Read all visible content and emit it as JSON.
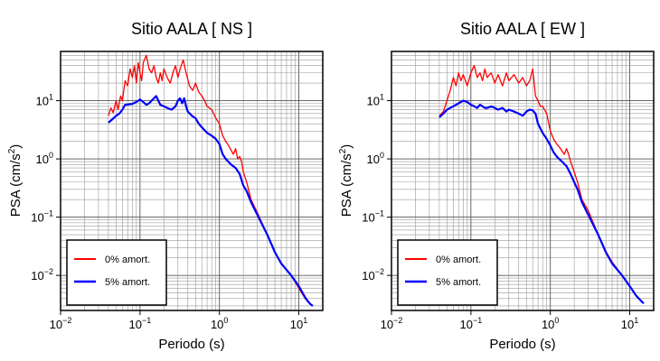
{
  "chart_data": [
    {
      "type": "line",
      "title": "Sitio AALA [ NS ]",
      "xlabel": "Periodo (s)",
      "ylabel_main": "PSA (cm/s",
      "ylabel_sup": "2",
      "ylabel_end": ")",
      "xscale": "log",
      "yscale": "log",
      "xlim": [
        0.01,
        20
      ],
      "ylim": [
        0.0025,
        70
      ],
      "grid": true,
      "legend_position": "bottom-left",
      "x_ticks": [
        {
          "base": "10",
          "exp": "−2"
        },
        {
          "base": "10",
          "exp": "−1"
        },
        {
          "base": "10",
          "exp": "0"
        },
        {
          "base": "10",
          "exp": "1"
        }
      ],
      "y_ticks": [
        {
          "base": "10",
          "exp": "−2"
        },
        {
          "base": "10",
          "exp": "−1"
        },
        {
          "base": "10",
          "exp": "0"
        },
        {
          "base": "10",
          "exp": "1"
        }
      ],
      "series": [
        {
          "name": "0% amort.",
          "color": "#ff0000",
          "points": [
            [
              0.04,
              5.5
            ],
            [
              0.043,
              7.5
            ],
            [
              0.046,
              6.2
            ],
            [
              0.05,
              10
            ],
            [
              0.053,
              7
            ],
            [
              0.057,
              12
            ],
            [
              0.06,
              10
            ],
            [
              0.065,
              22
            ],
            [
              0.07,
              18
            ],
            [
              0.075,
              35
            ],
            [
              0.08,
              25
            ],
            [
              0.085,
              40
            ],
            [
              0.09,
              20
            ],
            [
              0.095,
              45
            ],
            [
              0.1,
              30
            ],
            [
              0.105,
              22
            ],
            [
              0.11,
              45
            ],
            [
              0.12,
              60
            ],
            [
              0.13,
              35
            ],
            [
              0.14,
              30
            ],
            [
              0.15,
              40
            ],
            [
              0.16,
              25
            ],
            [
              0.17,
              20
            ],
            [
              0.18,
              30
            ],
            [
              0.19,
              22
            ],
            [
              0.2,
              35
            ],
            [
              0.22,
              25
            ],
            [
              0.24,
              20
            ],
            [
              0.26,
              30
            ],
            [
              0.28,
              40
            ],
            [
              0.3,
              25
            ],
            [
              0.32,
              35
            ],
            [
              0.35,
              50
            ],
            [
              0.38,
              30
            ],
            [
              0.42,
              18
            ],
            [
              0.46,
              15
            ],
            [
              0.5,
              20
            ],
            [
              0.55,
              14
            ],
            [
              0.6,
              12
            ],
            [
              0.65,
              10
            ],
            [
              0.7,
              8
            ],
            [
              0.8,
              7
            ],
            [
              0.9,
              5
            ],
            [
              1.0,
              4
            ],
            [
              1.1,
              2.5
            ],
            [
              1.2,
              2
            ],
            [
              1.3,
              1.7
            ],
            [
              1.5,
              1.2
            ],
            [
              1.6,
              1.5
            ],
            [
              1.7,
              1.0
            ],
            [
              1.8,
              1.1
            ],
            [
              1.9,
              0.9
            ],
            [
              2.0,
              0.6
            ],
            [
              2.2,
              0.4
            ],
            [
              2.5,
              0.2
            ],
            [
              3,
              0.12
            ],
            [
              4,
              0.05
            ],
            [
              5,
              0.025
            ],
            [
              6,
              0.016
            ],
            [
              8,
              0.01
            ],
            [
              10,
              0.006
            ],
            [
              12,
              0.004
            ],
            [
              13,
              0.0035
            ],
            [
              14,
              0.0032
            ],
            [
              15,
              0.003
            ]
          ]
        },
        {
          "name": "5% amort.",
          "color": "#0000ff",
          "points": [
            [
              0.04,
              4.2
            ],
            [
              0.045,
              4.8
            ],
            [
              0.05,
              5.5
            ],
            [
              0.055,
              6
            ],
            [
              0.06,
              7
            ],
            [
              0.065,
              8.5
            ],
            [
              0.08,
              8.8
            ],
            [
              0.09,
              9.5
            ],
            [
              0.1,
              10.5
            ],
            [
              0.11,
              9.5
            ],
            [
              0.12,
              8.5
            ],
            [
              0.13,
              9
            ],
            [
              0.14,
              10
            ],
            [
              0.15,
              11
            ],
            [
              0.16,
              12
            ],
            [
              0.17,
              10
            ],
            [
              0.18,
              8.5
            ],
            [
              0.2,
              8
            ],
            [
              0.22,
              7.5
            ],
            [
              0.25,
              7
            ],
            [
              0.28,
              8
            ],
            [
              0.3,
              10
            ],
            [
              0.32,
              11
            ],
            [
              0.34,
              9
            ],
            [
              0.36,
              11
            ],
            [
              0.38,
              8
            ],
            [
              0.4,
              6.5
            ],
            [
              0.45,
              5.5
            ],
            [
              0.5,
              5
            ],
            [
              0.55,
              4
            ],
            [
              0.6,
              3.5
            ],
            [
              0.7,
              2.8
            ],
            [
              0.8,
              2.5
            ],
            [
              0.9,
              2.2
            ],
            [
              1.0,
              1.8
            ],
            [
              1.1,
              1.2
            ],
            [
              1.2,
              1.0
            ],
            [
              1.4,
              0.8
            ],
            [
              1.6,
              0.7
            ],
            [
              1.8,
              0.55
            ],
            [
              2.0,
              0.35
            ],
            [
              2.2,
              0.28
            ],
            [
              2.5,
              0.18
            ],
            [
              3,
              0.11
            ],
            [
              4,
              0.05
            ],
            [
              5,
              0.025
            ],
            [
              6,
              0.016
            ],
            [
              8,
              0.01
            ],
            [
              10,
              0.0065
            ],
            [
              12,
              0.0042
            ],
            [
              13,
              0.0036
            ],
            [
              14,
              0.0032
            ],
            [
              15,
              0.003
            ]
          ]
        }
      ]
    },
    {
      "type": "line",
      "title": "Sitio AALA [ EW ]",
      "xlabel": "Periodo (s)",
      "ylabel_main": "PSA (cm/s",
      "ylabel_sup": "2",
      "ylabel_end": ")",
      "xscale": "log",
      "yscale": "log",
      "xlim": [
        0.01,
        20
      ],
      "ylim": [
        0.0025,
        70
      ],
      "grid": true,
      "legend_position": "bottom-left",
      "x_ticks": [
        {
          "base": "10",
          "exp": "−2"
        },
        {
          "base": "10",
          "exp": "−1"
        },
        {
          "base": "10",
          "exp": "0"
        },
        {
          "base": "10",
          "exp": "1"
        }
      ],
      "y_ticks": [
        {
          "base": "10",
          "exp": "−2"
        },
        {
          "base": "10",
          "exp": "−1"
        },
        {
          "base": "10",
          "exp": "0"
        },
        {
          "base": "10",
          "exp": "1"
        }
      ],
      "series": [
        {
          "name": "0% amort.",
          "color": "#ff0000",
          "points": [
            [
              0.04,
              5.5
            ],
            [
              0.045,
              6.5
            ],
            [
              0.05,
              10
            ],
            [
              0.055,
              15
            ],
            [
              0.06,
              25
            ],
            [
              0.065,
              18
            ],
            [
              0.07,
              30
            ],
            [
              0.075,
              22
            ],
            [
              0.08,
              28
            ],
            [
              0.09,
              18
            ],
            [
              0.1,
              30
            ],
            [
              0.11,
              40
            ],
            [
              0.12,
              25
            ],
            [
              0.13,
              30
            ],
            [
              0.14,
              22
            ],
            [
              0.15,
              35
            ],
            [
              0.16,
              25
            ],
            [
              0.18,
              30
            ],
            [
              0.2,
              20
            ],
            [
              0.22,
              28
            ],
            [
              0.25,
              18
            ],
            [
              0.28,
              30
            ],
            [
              0.3,
              22
            ],
            [
              0.35,
              28
            ],
            [
              0.4,
              20
            ],
            [
              0.45,
              25
            ],
            [
              0.5,
              18
            ],
            [
              0.55,
              22
            ],
            [
              0.6,
              35
            ],
            [
              0.65,
              12
            ],
            [
              0.7,
              10
            ],
            [
              0.75,
              8
            ],
            [
              0.8,
              8
            ],
            [
              0.9,
              6
            ],
            [
              1.0,
              3
            ],
            [
              1.1,
              2.2
            ],
            [
              1.2,
              1.8
            ],
            [
              1.3,
              1.6
            ],
            [
              1.5,
              1.2
            ],
            [
              1.6,
              1.5
            ],
            [
              1.7,
              1.2
            ],
            [
              1.8,
              0.9
            ],
            [
              2.0,
              0.6
            ],
            [
              2.2,
              0.4
            ],
            [
              2.5,
              0.2
            ],
            [
              3,
              0.13
            ],
            [
              4,
              0.05
            ],
            [
              5,
              0.026
            ],
            [
              6,
              0.017
            ],
            [
              8,
              0.01
            ],
            [
              10,
              0.0065
            ],
            [
              12,
              0.0045
            ],
            [
              13,
              0.004
            ],
            [
              14,
              0.0036
            ],
            [
              15,
              0.0033
            ]
          ]
        },
        {
          "name": "5% amort.",
          "color": "#0000ff",
          "points": [
            [
              0.04,
              5.2
            ],
            [
              0.045,
              6
            ],
            [
              0.05,
              7
            ],
            [
              0.06,
              8
            ],
            [
              0.07,
              9
            ],
            [
              0.08,
              10
            ],
            [
              0.09,
              9.5
            ],
            [
              0.1,
              8.5
            ],
            [
              0.11,
              8
            ],
            [
              0.12,
              7.5
            ],
            [
              0.13,
              8.5
            ],
            [
              0.14,
              8
            ],
            [
              0.15,
              7.5
            ],
            [
              0.16,
              7.5
            ],
            [
              0.18,
              8
            ],
            [
              0.2,
              7.5
            ],
            [
              0.22,
              7
            ],
            [
              0.25,
              7.5
            ],
            [
              0.28,
              6.5
            ],
            [
              0.3,
              7
            ],
            [
              0.35,
              6.5
            ],
            [
              0.4,
              6
            ],
            [
              0.45,
              5.5
            ],
            [
              0.5,
              6.5
            ],
            [
              0.55,
              7
            ],
            [
              0.6,
              6.8
            ],
            [
              0.65,
              6
            ],
            [
              0.7,
              4
            ],
            [
              0.8,
              2.8
            ],
            [
              0.9,
              2.2
            ],
            [
              1.0,
              1.7
            ],
            [
              1.1,
              1.3
            ],
            [
              1.2,
              1.1
            ],
            [
              1.4,
              0.9
            ],
            [
              1.6,
              0.75
            ],
            [
              1.8,
              0.55
            ],
            [
              2.0,
              0.4
            ],
            [
              2.2,
              0.3
            ],
            [
              2.5,
              0.18
            ],
            [
              3,
              0.11
            ],
            [
              4,
              0.05
            ],
            [
              5,
              0.025
            ],
            [
              6,
              0.016
            ],
            [
              8,
              0.01
            ],
            [
              10,
              0.0065
            ],
            [
              12,
              0.0045
            ],
            [
              13,
              0.004
            ],
            [
              14,
              0.0036
            ],
            [
              15,
              0.0033
            ]
          ]
        }
      ]
    }
  ]
}
